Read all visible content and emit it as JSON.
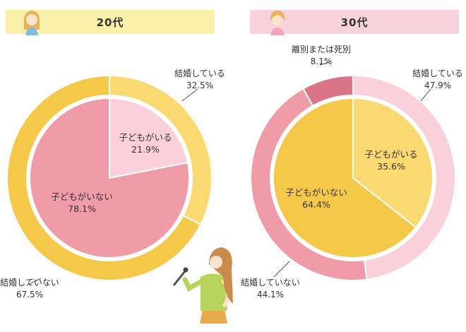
{
  "headers": {
    "left": "20代",
    "right": "30代"
  },
  "colors": {
    "married_20": "#fbd972",
    "not_married_20": "#f4c94a",
    "children_20": "#fbd0da",
    "no_children_20": "#ef9ba8",
    "married_30": "#fad0da",
    "not_married_30": "#ef9ba8",
    "divorced_30": "#d97587",
    "children_30": "#fbd972",
    "no_children_30": "#f4c94a",
    "header_20": "#f8f0a8",
    "header_30": "#f8d2dc"
  },
  "labels": {
    "c20_married_name": "結婚している",
    "c20_married_value": "32.5%",
    "c20_notmarried_name": "結婚していない",
    "c20_notmarried_value": "67.5%",
    "c20_children_name": "子どもがいる",
    "c20_children_value": "21.9%",
    "c20_nochildren_name": "子どもがいない",
    "c20_nochildren_value": "78.1%",
    "c30_divorced_name": "離別または死別",
    "c30_divorced_value": "8.1%",
    "c30_married_name": "結婚している",
    "c30_married_value": "47.9%",
    "c30_notmarried_name": "結婚していない",
    "c30_notmarried_value": "44.1%",
    "c30_children_name": "子どもがいる",
    "c30_children_value": "35.6%",
    "c30_nochildren_name": "子どもがいない",
    "c30_nochildren_value": "64.4%"
  },
  "chart_data": [
    {
      "type": "pie",
      "title": "20代",
      "outer": {
        "categories": [
          "結婚している",
          "結婚していない"
        ],
        "values": [
          32.5,
          67.5
        ]
      },
      "inner": {
        "categories": [
          "子どもがいる",
          "子どもがいない"
        ],
        "values": [
          21.9,
          78.1
        ]
      }
    },
    {
      "type": "pie",
      "title": "30代",
      "outer": {
        "categories": [
          "結婚している",
          "結婚していない",
          "離別または死別"
        ],
        "values": [
          47.9,
          44.1,
          8.1
        ]
      },
      "inner": {
        "categories": [
          "子どもがいる",
          "子どもがいない"
        ],
        "values": [
          35.6,
          64.4
        ]
      }
    }
  ]
}
